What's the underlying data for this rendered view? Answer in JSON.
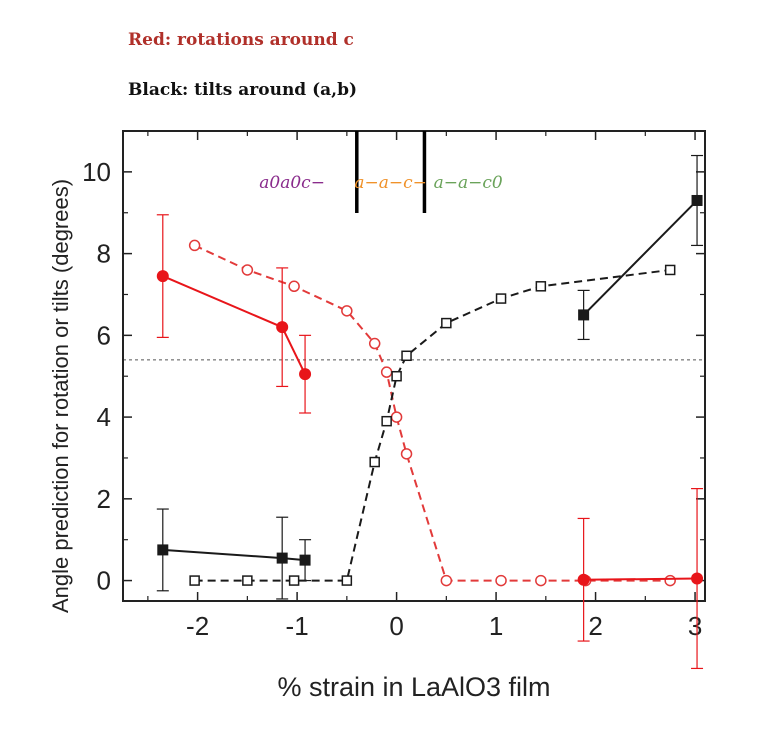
{
  "header": {
    "red_caption": "Red: rotations around c",
    "black_caption": "Black: tilts around (a,b)"
  },
  "colors": {
    "red": "#e8151a",
    "red_open": "#e23a3a",
    "black": "#1a1a1a",
    "phase_purple": "#8a2c8c",
    "phase_orange": "#f0922a",
    "phase_green": "#6aa35a"
  },
  "chart_data": {
    "type": "scatter",
    "xlabel": "% strain in LaAlO3 film",
    "ylabel": "Angle prediction for rotation or tilts (degrees)",
    "xlim": [
      -2.75,
      3.1
    ],
    "ylim": [
      -0.5,
      11.0
    ],
    "x_ticks": [
      "-2",
      "-1",
      "0",
      "1",
      "2",
      "3"
    ],
    "y_ticks": [
      "0",
      "2",
      "4",
      "6",
      "8",
      "10"
    ],
    "x_tick_values": [
      -2,
      -1,
      0,
      1,
      2,
      3
    ],
    "y_tick_values": [
      0,
      2,
      4,
      6,
      8,
      10
    ],
    "reference_line_y": 5.4,
    "phase_boundaries_x": [
      -0.4,
      0.28
    ],
    "phase_labels": [
      {
        "text": "a0a0c−",
        "x_center": -1.05,
        "color": "#8a2c8c"
      },
      {
        "text": "a−a−c−",
        "x_center": -0.06,
        "color": "#f0922a"
      },
      {
        "text": "a−a−c0",
        "x_center": 0.72,
        "color": "#6aa35a"
      }
    ],
    "series": [
      {
        "style": "red-open-dashed",
        "points": [
          [
            -2.03,
            8.2
          ],
          [
            -1.5,
            7.6
          ],
          [
            -1.03,
            7.2
          ],
          [
            -0.5,
            6.6
          ],
          [
            -0.22,
            5.8
          ],
          [
            -0.1,
            5.1
          ],
          [
            0.0,
            4.0
          ],
          [
            0.1,
            3.1
          ],
          [
            0.5,
            0.0
          ],
          [
            1.05,
            0.0
          ],
          [
            1.45,
            0.0
          ],
          [
            1.9,
            0.0
          ],
          [
            2.75,
            0.0
          ]
        ]
      },
      {
        "style": "black-open-dashed",
        "points": [
          [
            -2.03,
            0.0
          ],
          [
            -1.5,
            0.0
          ],
          [
            -1.03,
            0.0
          ],
          [
            -0.5,
            0.0
          ],
          [
            -0.22,
            2.9
          ],
          [
            -0.1,
            3.9
          ],
          [
            0.0,
            5.0
          ],
          [
            0.1,
            5.5
          ],
          [
            0.5,
            6.3
          ],
          [
            1.05,
            6.9
          ],
          [
            1.45,
            7.2
          ],
          [
            2.75,
            7.6
          ]
        ]
      },
      {
        "style": "red-filled-solid",
        "segments": [
          [
            [
              -2.35,
              7.45,
              1.5
            ],
            [
              -1.15,
              6.2,
              1.45
            ],
            [
              -0.92,
              5.05,
              0.95
            ]
          ],
          [
            [
              1.88,
              0.02,
              1.5
            ],
            [
              3.02,
              0.05,
              2.2
            ]
          ]
        ]
      },
      {
        "style": "black-filled-solid",
        "segments": [
          [
            [
              -2.35,
              0.75,
              1.0
            ],
            [
              -1.15,
              0.55,
              1.0
            ],
            [
              -0.92,
              0.5,
              0.5
            ]
          ],
          [
            [
              1.88,
              6.5,
              0.6
            ],
            [
              3.02,
              9.3,
              1.1
            ]
          ]
        ]
      }
    ]
  }
}
